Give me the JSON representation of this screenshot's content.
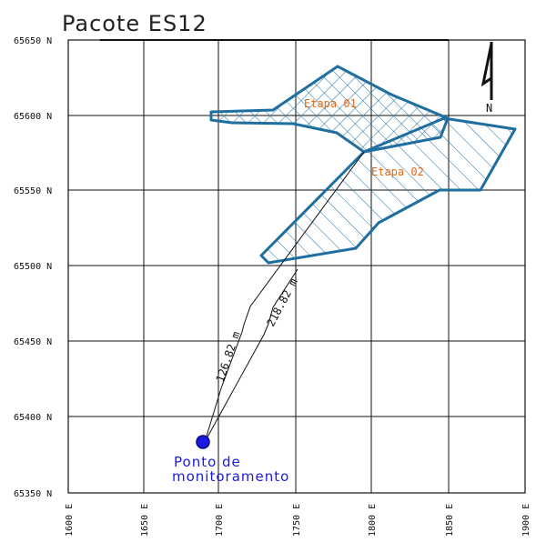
{
  "title": "Pacote ES12",
  "axes": {
    "y_ticks": [
      "65650 N",
      "65600 N",
      "65550 N",
      "65500 N",
      "65450 N",
      "65400 N",
      "65350 N"
    ],
    "x_ticks": [
      "1600 E",
      "1650 E",
      "1700 E",
      "1750 E",
      "1800 E",
      "1850 E",
      "1900 E"
    ]
  },
  "north_arrow": {
    "label": "N"
  },
  "areas": [
    {
      "name": "Etapa 01",
      "hatch": "cross",
      "color": "#1e6fa0",
      "label_color": "#e06a1a"
    },
    {
      "name": "Etapa 02",
      "hatch": "diagonal",
      "color": "#1e6fa0",
      "label_color": "#e06a1a"
    }
  ],
  "distances": [
    {
      "label": "126.82 m",
      "to": "Etapa 01"
    },
    {
      "label": "218.82 m",
      "to": "Etapa 02"
    }
  ],
  "monitoring_point": {
    "label_line1": "Ponto de",
    "label_line2": "monitoramento",
    "color": "#1a1ae0"
  }
}
